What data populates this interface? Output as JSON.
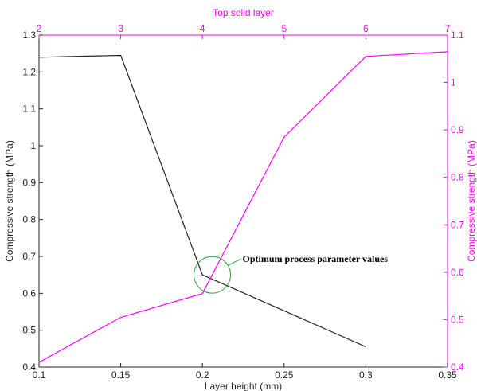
{
  "colors": {
    "primary": "#222222",
    "secondary": "#ff00ff",
    "annotation_circle": "#2e9b3a"
  },
  "chart_data": {
    "type": "line",
    "title": "",
    "grid": false,
    "xlabel": "Layer height (mm)",
    "x2label": "Top solid layer",
    "ylabel": "Compressive strength (MPa)",
    "y2label": "Compressive strength (MPa)",
    "xlim": [
      0.1,
      0.35
    ],
    "x2lim": [
      2,
      7
    ],
    "ylim": [
      0.4,
      1.3
    ],
    "y2lim": [
      0.4,
      1.1
    ],
    "x_ticks": [
      "0.1",
      "0.15",
      "0.2",
      "0.25",
      "0.3",
      "0.35"
    ],
    "x2_ticks": [
      "2",
      "3",
      "4",
      "5",
      "6",
      "7"
    ],
    "y_ticks": [
      "0.4",
      "0.5",
      "0.6",
      "0.7",
      "0.8",
      "0.9",
      "1",
      "1.1",
      "1.2",
      "1.3"
    ],
    "y2_ticks": [
      "0.4",
      "0.5",
      "0.6",
      "0.7",
      "0.8",
      "0.9",
      "1",
      "1.1"
    ],
    "series": [
      {
        "axis": "primary",
        "color": "#222222",
        "x": [
          0.1,
          0.15,
          0.2,
          0.3
        ],
        "y": [
          1.24,
          1.245,
          0.65,
          0.455
        ]
      },
      {
        "axis": "secondary",
        "color": "#ff00ff",
        "x": [
          2,
          3,
          4,
          5,
          6,
          7
        ],
        "y": [
          0.41,
          0.505,
          0.555,
          0.885,
          1.055,
          1.065
        ]
      }
    ],
    "annotation": {
      "text": "Optimum process parameter values",
      "x": 0.206,
      "y": 0.65
    }
  }
}
